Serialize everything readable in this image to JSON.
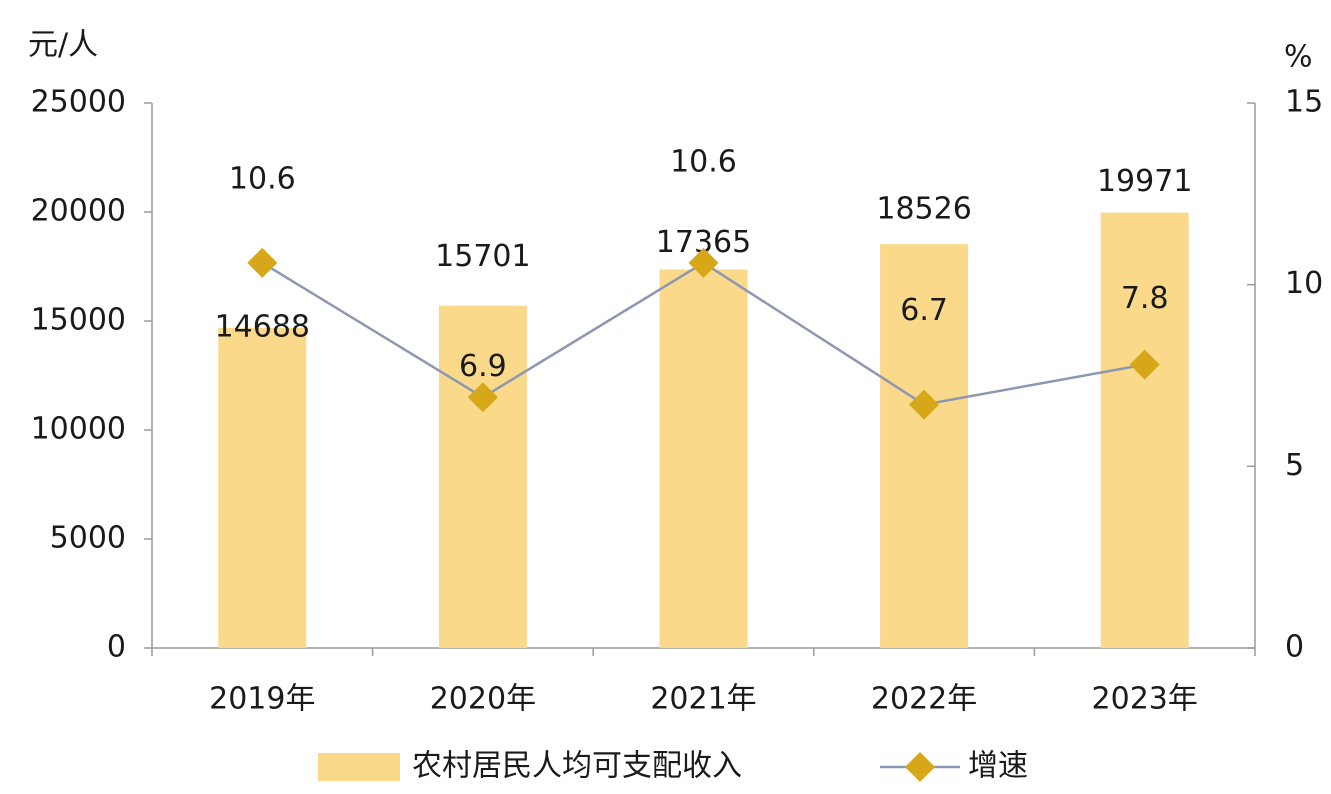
{
  "chart_data": {
    "type": "bar",
    "y_unit": "元/人",
    "y2_unit": "%",
    "categories": [
      "2019年",
      "2020年",
      "2021年",
      "2022年",
      "2023年"
    ],
    "series": [
      {
        "name": "农村居民人均可支配收入",
        "type": "bar",
        "color": "#fad98a",
        "values": [
          14688,
          15701,
          17365,
          18526,
          19971
        ]
      },
      {
        "name": "增速",
        "type": "line",
        "axis": "y2",
        "color": "#8c97b1",
        "marker_color": "#d6a718",
        "values": [
          10.6,
          6.9,
          10.6,
          6.7,
          7.8
        ]
      }
    ],
    "ylim": [
      0,
      25000
    ],
    "yticks": [
      0,
      5000,
      10000,
      15000,
      20000,
      25000
    ],
    "y2lim": [
      0,
      15
    ],
    "y2ticks": [
      0,
      5,
      10,
      15
    ],
    "grid": false
  }
}
